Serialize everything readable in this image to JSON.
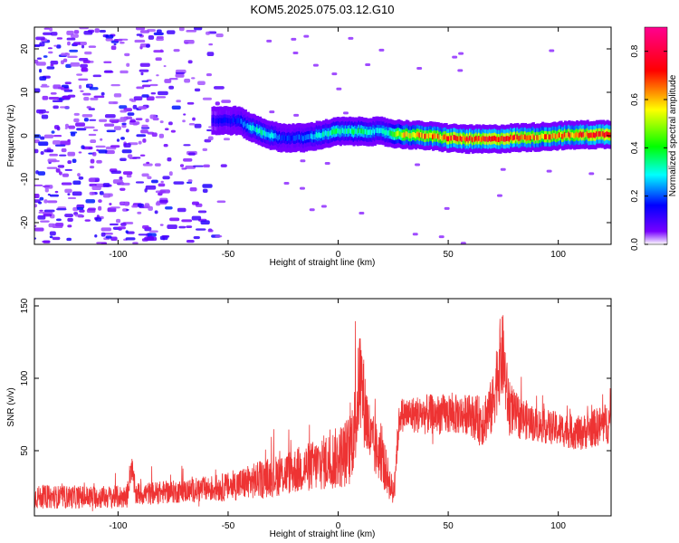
{
  "title": "KOM5.2025.075.03.12.G10",
  "chart_data": [
    {
      "type": "heatmap",
      "xlabel": "Height of straight line (km)",
      "ylabel": "Frequency (Hz)",
      "xlim": [
        -138,
        124
      ],
      "ylim": [
        -25,
        25
      ],
      "xticks": [
        -100,
        -50,
        0,
        50,
        100
      ],
      "yticks": [
        -20,
        -10,
        0,
        10,
        20
      ],
      "grid": false,
      "colorbar": {
        "label": "Normalized spectral amplitude",
        "range": [
          0,
          0.9
        ],
        "ticks": [
          "0.0",
          "0.2",
          "0.4",
          "0.6",
          "0.8"
        ],
        "colors": [
          "#ffffff",
          "#7700ff",
          "#0000ff",
          "#00ffff",
          "#00ff00",
          "#ffff00",
          "#ff0000",
          "#ff0090"
        ]
      },
      "ridge": {
        "x": [
          -55,
          -45,
          -40,
          -35,
          -30,
          -25,
          -20,
          -15,
          -10,
          -5,
          0,
          5,
          10,
          15,
          20,
          25,
          30,
          40,
          50,
          60,
          70,
          80,
          90,
          100,
          110,
          120
        ],
        "frequency": [
          3.5,
          3.5,
          2,
          1,
          0,
          -0.5,
          -0.5,
          -0.5,
          0,
          0.5,
          1,
          1,
          1,
          1,
          1,
          0.5,
          0.3,
          0,
          -0.5,
          -0.8,
          -0.8,
          -0.5,
          -0.3,
          0,
          0.2,
          0.3
        ],
        "amplitude": [
          0.15,
          0.2,
          0.3,
          0.35,
          0.3,
          0.2,
          0.2,
          0.25,
          0.3,
          0.35,
          0.4,
          0.35,
          0.4,
          0.35,
          0.3,
          0.45,
          0.6,
          0.7,
          0.75,
          0.8,
          0.8,
          0.75,
          0.7,
          0.7,
          0.75,
          0.8
        ]
      }
    },
    {
      "type": "line",
      "xlabel": "Height of straight line (km)",
      "ylabel": "SNR (v/v)",
      "xlim": [
        -138,
        124
      ],
      "ylim": [
        5,
        155
      ],
      "xticks": [
        -100,
        -50,
        0,
        50,
        100
      ],
      "yticks": [
        50,
        100,
        150
      ],
      "grid": false,
      "color": "#ee3333",
      "envelope": {
        "x": [
          -138,
          -96,
          -94,
          -92,
          -70,
          -50,
          -30,
          -10,
          0,
          5,
          8,
          10,
          12,
          15,
          20,
          25,
          28,
          30,
          40,
          50,
          60,
          65,
          70,
          73,
          75,
          77,
          80,
          90,
          100,
          110,
          124
        ],
        "mean": [
          18,
          18,
          40,
          20,
          22,
          25,
          32,
          40,
          45,
          50,
          70,
          105,
          80,
          55,
          45,
          20,
          75,
          75,
          75,
          75,
          75,
          70,
          80,
          110,
          115,
          85,
          75,
          68,
          65,
          62,
          70
        ],
        "spread": [
          8,
          8,
          10,
          8,
          8,
          10,
          14,
          18,
          22,
          25,
          30,
          35,
          30,
          22,
          18,
          10,
          12,
          12,
          14,
          14,
          14,
          18,
          20,
          30,
          30,
          22,
          16,
          12,
          12,
          12,
          15
        ]
      }
    }
  ]
}
